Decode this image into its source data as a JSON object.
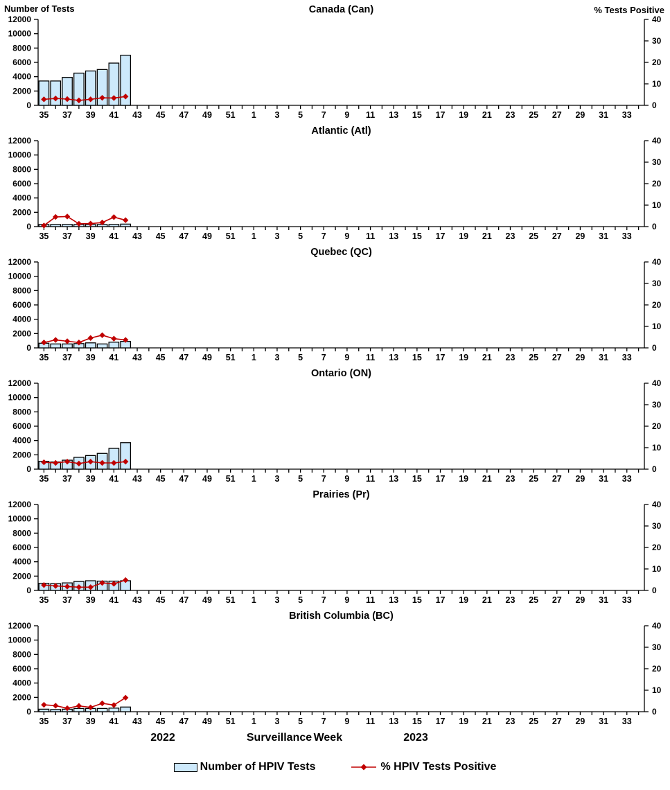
{
  "header": {
    "left_axis_title": "Number of Tests",
    "right_axis_title": "% Tests Positive"
  },
  "footer": {
    "year_left": "2022",
    "axis_title": "Surveillance Week",
    "year_right": "2023",
    "legend_bar_label": "Number of HPIV Tests",
    "legend_line_label": "% HPIV Tests Positive"
  },
  "colors": {
    "bar_fill": "#CDE9FB",
    "bar_border": "#000000",
    "line": "#C00000",
    "axis": "#000000"
  },
  "axes": {
    "weeks": [
      35,
      36,
      37,
      38,
      39,
      40,
      41,
      42,
      43,
      44,
      45,
      46,
      47,
      48,
      49,
      50,
      51,
      52,
      1,
      2,
      3,
      4,
      5,
      6,
      7,
      8,
      9,
      10,
      11,
      12,
      13,
      14,
      15,
      16,
      17,
      18,
      19,
      20,
      21,
      22,
      23,
      24,
      25,
      26,
      27,
      28,
      29,
      30,
      31,
      32,
      33,
      34
    ],
    "labeled_weeks": [
      35,
      37,
      39,
      41,
      43,
      45,
      47,
      49,
      51,
      1,
      3,
      5,
      7,
      9,
      11,
      13,
      15,
      17,
      19,
      21,
      23,
      25,
      27,
      29,
      31,
      33
    ],
    "left_ylim": [
      0,
      12000
    ],
    "left_ticks": [
      0,
      2000,
      4000,
      6000,
      8000,
      10000,
      12000
    ],
    "right_ylim": [
      0,
      40
    ],
    "right_ticks": [
      0,
      10,
      20,
      30,
      40
    ]
  },
  "chart_data": [
    {
      "type": "bar+line",
      "id": "can",
      "title": "Canada (Can)",
      "bar_weeks": [
        35,
        36,
        37,
        38,
        39,
        40,
        41,
        42
      ],
      "tests": [
        3400,
        3400,
        3900,
        4500,
        4800,
        5000,
        5900,
        7000
      ],
      "pct_positive": [
        2.8,
        3.2,
        2.9,
        2.3,
        2.8,
        3.5,
        3.4,
        4.1
      ]
    },
    {
      "type": "bar+line",
      "id": "atl",
      "title": "Atlantic (Atl)",
      "bar_weeks": [
        35,
        36,
        37,
        38,
        39,
        40,
        41,
        42
      ],
      "tests": [
        300,
        300,
        300,
        300,
        300,
        300,
        300,
        350
      ],
      "pct_positive": [
        0.5,
        4.5,
        4.7,
        1.3,
        1.4,
        1.9,
        4.4,
        3.0
      ]
    },
    {
      "type": "bar+line",
      "id": "qc",
      "title": "Quebec (QC)",
      "bar_weeks": [
        35,
        36,
        37,
        38,
        39,
        40,
        41,
        42
      ],
      "tests": [
        650,
        550,
        550,
        600,
        700,
        550,
        800,
        900
      ],
      "pct_positive": [
        2.5,
        3.7,
        3.1,
        2.5,
        4.6,
        5.9,
        4.3,
        3.7
      ]
    },
    {
      "type": "bar+line",
      "id": "on",
      "title": "Ontario (ON)",
      "bar_weeks": [
        35,
        36,
        37,
        38,
        39,
        40,
        41,
        42
      ],
      "tests": [
        1100,
        1000,
        1250,
        1650,
        1900,
        2200,
        2900,
        3700
      ],
      "pct_positive": [
        3.2,
        2.9,
        3.5,
        2.6,
        3.5,
        2.9,
        2.9,
        3.5
      ]
    },
    {
      "type": "bar+line",
      "id": "pr",
      "title": "Prairies (Pr)",
      "bar_weeks": [
        35,
        36,
        37,
        38,
        39,
        40,
        41,
        42
      ],
      "tests": [
        1000,
        950,
        1050,
        1250,
        1350,
        1300,
        1300,
        1350
      ],
      "pct_positive": [
        2.5,
        2.1,
        1.8,
        1.5,
        1.5,
        3.5,
        3.1,
        4.8
      ]
    },
    {
      "type": "bar+line",
      "id": "bc",
      "title": "British Columbia (BC)",
      "bar_weeks": [
        35,
        36,
        37,
        38,
        39,
        40,
        41,
        42
      ],
      "tests": [
        350,
        300,
        350,
        450,
        450,
        450,
        500,
        650
      ],
      "pct_positive": [
        3.2,
        2.8,
        1.6,
        2.7,
        2.0,
        3.9,
        3.1,
        6.5
      ]
    }
  ]
}
